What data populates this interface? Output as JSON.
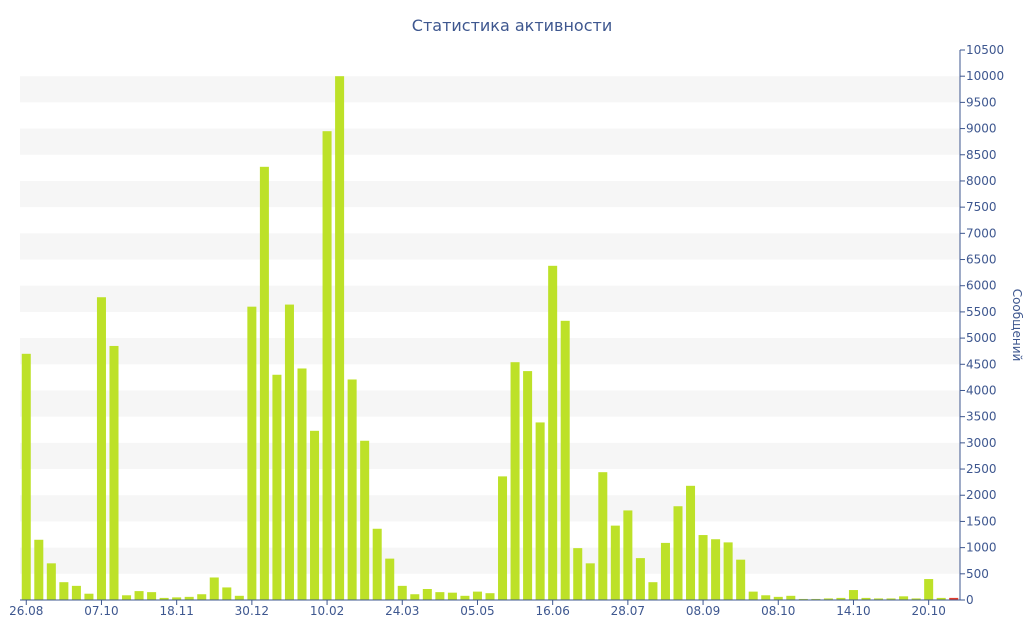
{
  "chart_data": {
    "type": "bar",
    "title": "Статистика активности",
    "ylabel": "Сообщений",
    "xlabel": "",
    "ylim": [
      0,
      10500
    ],
    "ytick_step": 500,
    "grid": "alternating horizontal bands",
    "y_axis_side": "right",
    "colors": {
      "bar": "#bde128",
      "last_bar": "#e23b2a",
      "band": "#f6f6f6",
      "text": "#3e578f",
      "axis": "#3e578f"
    },
    "x_tick_labels": [
      {
        "index": 0,
        "label": "26.08"
      },
      {
        "index": 6,
        "label": "07.10"
      },
      {
        "index": 12,
        "label": "18.11"
      },
      {
        "index": 18,
        "label": "30.12"
      },
      {
        "index": 24,
        "label": "10.02"
      },
      {
        "index": 30,
        "label": "24.03"
      },
      {
        "index": 36,
        "label": "05.05"
      },
      {
        "index": 42,
        "label": "16.06"
      },
      {
        "index": 48,
        "label": "28.07"
      },
      {
        "index": 54,
        "label": "08.09"
      },
      {
        "index": 60,
        "label": "08.10"
      },
      {
        "index": 66,
        "label": "14.10"
      },
      {
        "index": 72,
        "label": "20.10"
      }
    ],
    "values": [
      4700,
      1150,
      700,
      340,
      270,
      120,
      5780,
      4850,
      90,
      170,
      150,
      40,
      50,
      60,
      110,
      430,
      240,
      80,
      5600,
      8270,
      4300,
      5640,
      4420,
      3230,
      8950,
      10000,
      4210,
      3040,
      1360,
      790,
      270,
      110,
      210,
      150,
      140,
      80,
      160,
      130,
      2360,
      4540,
      4370,
      3390,
      6380,
      5330,
      990,
      700,
      2440,
      1420,
      1710,
      800,
      340,
      1090,
      1790,
      2180,
      1240,
      1160,
      1100,
      770,
      160,
      90,
      60,
      80,
      20,
      20,
      30,
      40,
      190,
      40,
      30,
      30,
      70,
      30,
      400,
      40,
      40
    ]
  }
}
